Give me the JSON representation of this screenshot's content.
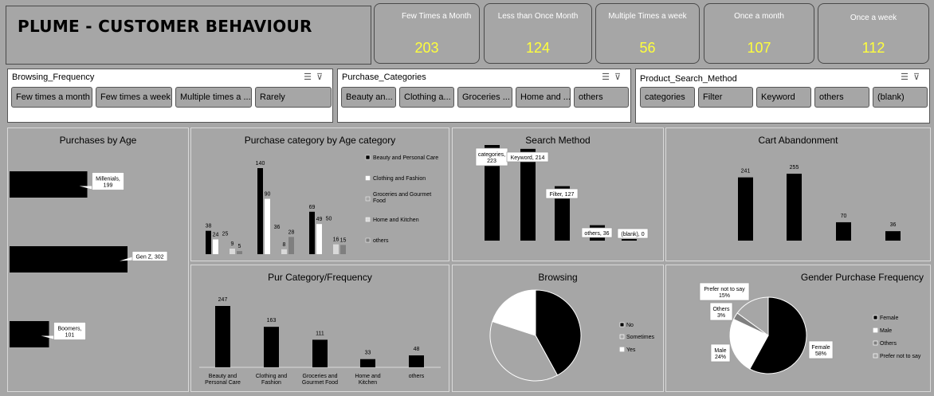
{
  "title": "PLUME - CUSTOMER BEHAVIOUR",
  "kpis": [
    {
      "label": "Few Times a Month",
      "value": "203"
    },
    {
      "label": "Less than Once Month",
      "value": "124"
    },
    {
      "label": "Multiple Times a week",
      "value": "56"
    },
    {
      "label": "Once a month",
      "value": "107"
    },
    {
      "label": "Once a week",
      "value": "112"
    }
  ],
  "slicers": [
    {
      "header": "Browsing_Frequency",
      "items": [
        "Few times a month",
        "Few times a week",
        "Multiple times a ...",
        "Rarely"
      ]
    },
    {
      "header": "Purchase_Categories",
      "items": [
        "Beauty an...",
        "Clothing a...",
        "Groceries ...",
        "Home and ...",
        "others"
      ]
    },
    {
      "header": "Product_Search_Method",
      "items": [
        "categories",
        "Filter",
        "Keyword",
        "others",
        "(blank)"
      ]
    }
  ],
  "panels": {
    "age": "Purchases by Age",
    "catage": "Purchase category by Age category",
    "search": "Search Method",
    "cart": "Cart Abandonment",
    "purfreq": "Pur Category/Frequency",
    "browsing": "Browsing",
    "gender": "Gender Purchase Frequency"
  },
  "chart_data": [
    {
      "id": "age",
      "type": "bar",
      "title": "Purchases by Age",
      "categories": [
        "Millenials",
        "Gen Z",
        "Boomers"
      ],
      "values": [
        199,
        302,
        101
      ],
      "labels": [
        "Millenials,\n199",
        "Gen Z, 302",
        "Boomers,\n101"
      ],
      "colors": {
        "bar": "#000000"
      }
    },
    {
      "id": "catage",
      "type": "bar",
      "title": "Purchase category by Age category",
      "series": [
        {
          "name": "Beauty and Personal Care",
          "values": [
            38,
            140,
            69
          ],
          "color": "#000000"
        },
        {
          "name": "Clothing and Fashion",
          "values": [
            24,
            90,
            49
          ],
          "color": "#ffffff"
        },
        {
          "name": "Groceries and Gourmet Food",
          "values": [
            25,
            36,
            50
          ],
          "color": "#a6a6a6"
        },
        {
          "name": "Home and Kitchen",
          "values": [
            9,
            8,
            16
          ],
          "color": "#d9d9d9"
        },
        {
          "name": "others",
          "values": [
            5,
            28,
            15
          ],
          "color": "#7f7f7f"
        }
      ]
    },
    {
      "id": "search",
      "type": "bar",
      "title": "Search Method",
      "categories": [
        "categories",
        "Keyword",
        "Filter",
        "others",
        "(blank)"
      ],
      "values": [
        223,
        214,
        127,
        36,
        0
      ],
      "labels": [
        "categories,\n223",
        "Keyword, 214",
        "Filter, 127",
        "others, 36",
        "(blank), 0"
      ]
    },
    {
      "id": "cart",
      "type": "bar",
      "title": "Cart Abandonment",
      "values": [
        241,
        255,
        70,
        36
      ]
    },
    {
      "id": "purfreq",
      "type": "bar",
      "title": "Pur Category/Frequency",
      "categories": [
        "Beauty and\nPersonal Care",
        "Clothing and\nFashion",
        "Groceries and\nGourmet Food",
        "Home and\nKitchen",
        "others"
      ],
      "values": [
        247,
        163,
        111,
        33,
        48
      ]
    },
    {
      "id": "browsing",
      "type": "pie",
      "title": "Browsing",
      "slices": [
        {
          "name": "No",
          "value": 42,
          "color": "#000000"
        },
        {
          "name": "Sometimes",
          "value": 38,
          "color": "#a6a6a6"
        },
        {
          "name": "Yes",
          "value": 20,
          "color": "#ffffff"
        }
      ]
    },
    {
      "id": "gender",
      "type": "pie",
      "title": "Gender Purchase Frequency",
      "slices": [
        {
          "name": "Female",
          "value": 58,
          "color": "#000000",
          "label": "Female\n58%"
        },
        {
          "name": "Male",
          "value": 24,
          "color": "#ffffff",
          "label": "Male\n24%"
        },
        {
          "name": "Others",
          "value": 3,
          "color": "#7f7f7f",
          "label": "Others\n3%"
        },
        {
          "name": "Prefer not to say",
          "value": 15,
          "color": "#a6a6a6",
          "label": "Prefer not to say\n15%"
        }
      ]
    }
  ]
}
